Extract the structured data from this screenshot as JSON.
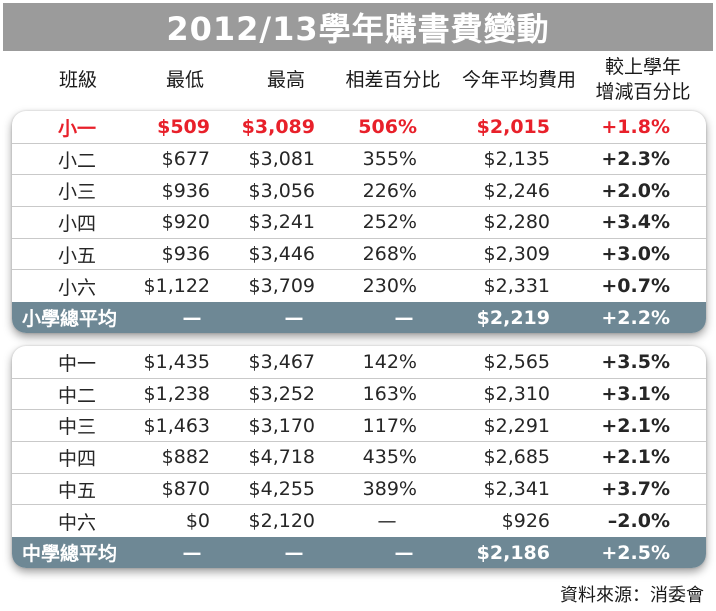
{
  "title": "2012/13學年購書費變動",
  "headers": {
    "grade": "班級",
    "min": "最低",
    "max": "最高",
    "diff_pct": "相差百分比",
    "avg_fee": "今年平均費用",
    "change_line1": "較上學年",
    "change_line2": "增減百分比"
  },
  "primary_rows": [
    {
      "grade": "小一",
      "min": "$509",
      "max": "$3,089",
      "diff": "506%",
      "avg": "$2,015",
      "change": "+1.8%",
      "highlight": true
    },
    {
      "grade": "小二",
      "min": "$677",
      "max": "$3,081",
      "diff": "355%",
      "avg": "$2,135",
      "change": "+2.3%"
    },
    {
      "grade": "小三",
      "min": "$936",
      "max": "$3,056",
      "diff": "226%",
      "avg": "$2,246",
      "change": "+2.0%"
    },
    {
      "grade": "小四",
      "min": "$920",
      "max": "$3,241",
      "diff": "252%",
      "avg": "$2,280",
      "change": "+3.4%"
    },
    {
      "grade": "小五",
      "min": "$936",
      "max": "$3,446",
      "diff": "268%",
      "avg": "$2,309",
      "change": "+3.0%"
    },
    {
      "grade": "小六",
      "min": "$1,122",
      "max": "$3,709",
      "diff": "230%",
      "avg": "$2,331",
      "change": "+0.7%"
    }
  ],
  "primary_avg": {
    "grade": "小學總平均",
    "min": "—",
    "max": "—",
    "diff": "—",
    "avg": "$2,219",
    "change": "+2.2%"
  },
  "secondary_rows": [
    {
      "grade": "中一",
      "min": "$1,435",
      "max": "$3,467",
      "diff": "142%",
      "avg": "$2,565",
      "change": "+3.5%"
    },
    {
      "grade": "中二",
      "min": "$1,238",
      "max": "$3,252",
      "diff": "163%",
      "avg": "$2,310",
      "change": "+3.1%"
    },
    {
      "grade": "中三",
      "min": "$1,463",
      "max": "$3,170",
      "diff": "117%",
      "avg": "$2,291",
      "change": "+2.1%"
    },
    {
      "grade": "中四",
      "min": "$882",
      "max": "$4,718",
      "diff": "435%",
      "avg": "$2,685",
      "change": "+2.1%"
    },
    {
      "grade": "中五",
      "min": "$870",
      "max": "$4,255",
      "diff": "389%",
      "avg": "$2,341",
      "change": "+3.7%"
    },
    {
      "grade": "中六",
      "min": "$0",
      "max": "$2,120",
      "diff": "—",
      "avg": "$926",
      "change": "–2.0%"
    }
  ],
  "secondary_avg": {
    "grade": "中學總平均",
    "min": "—",
    "max": "—",
    "diff": "—",
    "avg": "$2,186",
    "change": "+2.5%"
  },
  "source": "資料來源：消委會",
  "colors": {
    "highlight": "#e8202a",
    "avg_band": "#6e8895",
    "title_bar": "#9b9b9b"
  },
  "chart_data": {
    "type": "table",
    "title": "2012/13學年購書費變動",
    "columns": [
      "班級",
      "最低",
      "最高",
      "相差百分比",
      "今年平均費用",
      "較上學年增減百分比"
    ],
    "rows": [
      [
        "小一",
        "$509",
        "$3,089",
        "506%",
        "$2,015",
        "+1.8%"
      ],
      [
        "小二",
        "$677",
        "$3,081",
        "355%",
        "$2,135",
        "+2.3%"
      ],
      [
        "小三",
        "$936",
        "$3,056",
        "226%",
        "$2,246",
        "+2.0%"
      ],
      [
        "小四",
        "$920",
        "$3,241",
        "252%",
        "$2,280",
        "+3.4%"
      ],
      [
        "小五",
        "$936",
        "$3,446",
        "268%",
        "$2,309",
        "+3.0%"
      ],
      [
        "小六",
        "$1,122",
        "$3,709",
        "230%",
        "$2,331",
        "+0.7%"
      ],
      [
        "小學總平均",
        "—",
        "—",
        "—",
        "$2,219",
        "+2.2%"
      ],
      [
        "中一",
        "$1,435",
        "$3,467",
        "142%",
        "$2,565",
        "+3.5%"
      ],
      [
        "中二",
        "$1,238",
        "$3,252",
        "163%",
        "$2,310",
        "+3.1%"
      ],
      [
        "中三",
        "$1,463",
        "$3,170",
        "117%",
        "$2,291",
        "+2.1%"
      ],
      [
        "中四",
        "$882",
        "$4,718",
        "435%",
        "$2,685",
        "+2.1%"
      ],
      [
        "中五",
        "$870",
        "$4,255",
        "389%",
        "$2,341",
        "+3.7%"
      ],
      [
        "中六",
        "$0",
        "$2,120",
        "—",
        "$926",
        "–2.0%"
      ],
      [
        "中學總平均",
        "—",
        "—",
        "—",
        "$2,186",
        "+2.5%"
      ]
    ]
  }
}
